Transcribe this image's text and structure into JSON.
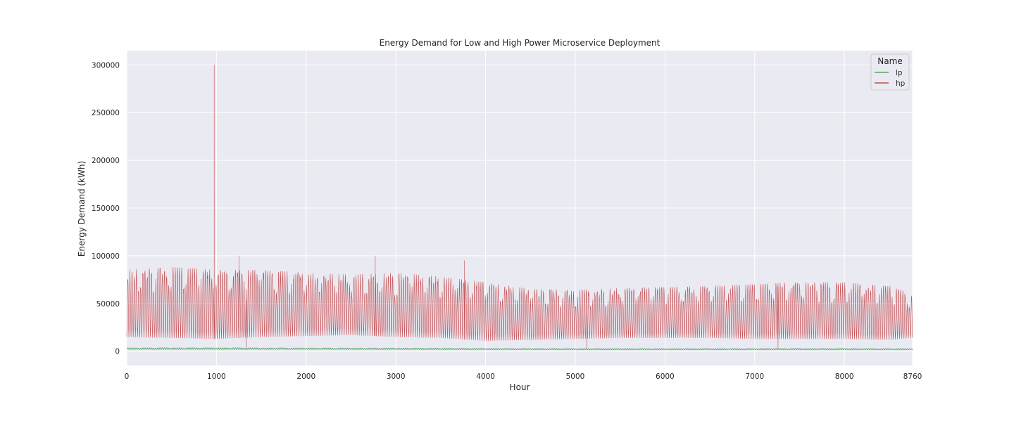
{
  "chart_data": {
    "type": "line",
    "title": "Energy Demand for Low and High Power Microservice Deployment",
    "xlabel": "Hour",
    "ylabel": "Energy Demand (kWh)",
    "xlim": [
      0,
      8760
    ],
    "ylim": [
      -15000,
      315000
    ],
    "xticks": [
      "0",
      "1000",
      "2000",
      "3000",
      "4000",
      "5000",
      "6000",
      "7000",
      "8000",
      "8760"
    ],
    "yticks": [
      "0",
      "50000",
      "100000",
      "150000",
      "200000",
      "250000",
      "300000"
    ],
    "grid": true,
    "legend": {
      "title": "Name",
      "position": "top-right"
    },
    "series": [
      {
        "name": "lp",
        "color": "#55a868",
        "x": [
          0,
          500,
          1000,
          1500,
          2000,
          2500,
          3000,
          3500,
          4000,
          4500,
          5000,
          5500,
          6000,
          6500,
          7000,
          7500,
          8000,
          8500,
          8760
        ],
        "min": [
          1800,
          1800,
          1800,
          1800,
          1800,
          1700,
          1700,
          1600,
          1500,
          1500,
          1400,
          1400,
          1400,
          1400,
          1400,
          1400,
          1400,
          1400,
          1400
        ],
        "max": [
          3500,
          3600,
          3600,
          3500,
          3400,
          3400,
          3300,
          3200,
          3000,
          2900,
          2800,
          2800,
          2800,
          2800,
          2800,
          2900,
          2900,
          2800,
          2800
        ]
      },
      {
        "name": "hp",
        "color": "#c44e52",
        "x": [
          0,
          500,
          1000,
          1500,
          2000,
          2500,
          3000,
          3500,
          4000,
          4500,
          5000,
          5500,
          6000,
          6500,
          7000,
          7500,
          8000,
          8500,
          8760
        ],
        "min": [
          15000,
          14000,
          13000,
          15000,
          16000,
          17000,
          15000,
          14000,
          11000,
          12000,
          13000,
          14000,
          14000,
          14000,
          13000,
          13000,
          13000,
          12000,
          14000
        ],
        "max": [
          85000,
          88000,
          85000,
          85000,
          82000,
          80000,
          82000,
          78000,
          72000,
          65000,
          64000,
          66000,
          67000,
          68000,
          70000,
          72000,
          72000,
          68000,
          60000
        ],
        "spikes": [
          {
            "x": 975,
            "y": 300000
          },
          {
            "x": 1250,
            "y": 100000
          },
          {
            "x": 2770,
            "y": 100000
          },
          {
            "x": 3765,
            "y": 95000
          },
          {
            "x": 1330,
            "y": 2000
          },
          {
            "x": 5130,
            "y": 2000
          },
          {
            "x": 7260,
            "y": 2000
          }
        ]
      }
    ]
  }
}
